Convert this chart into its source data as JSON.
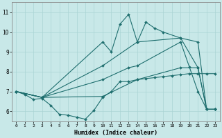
{
  "xlabel": "Humidex (Indice chaleur)",
  "xlim": [
    -0.5,
    23.5
  ],
  "ylim": [
    5.5,
    11.5
  ],
  "yticks": [
    6,
    7,
    8,
    9,
    10,
    11
  ],
  "xticks": [
    0,
    1,
    2,
    3,
    4,
    5,
    6,
    7,
    8,
    9,
    10,
    11,
    12,
    13,
    14,
    15,
    16,
    17,
    18,
    19,
    20,
    21,
    22,
    23
  ],
  "bg_color": "#c8e8e8",
  "line_color": "#1e6e6e",
  "grid_color": "#aad4d4",
  "lines": [
    {
      "x": [
        0,
        1,
        2,
        3,
        4,
        5,
        6,
        7,
        8,
        9,
        10,
        11,
        12,
        13,
        14,
        15,
        16,
        17,
        18,
        19,
        20,
        21,
        22,
        23
      ],
      "y": [
        7.0,
        6.85,
        6.6,
        6.65,
        6.3,
        5.85,
        5.8,
        5.7,
        5.6,
        6.05,
        6.7,
        7.0,
        7.5,
        7.5,
        7.6,
        7.65,
        7.7,
        7.75,
        7.8,
        7.85,
        7.9,
        7.9,
        7.9,
        7.9
      ]
    },
    {
      "x": [
        0,
        3,
        10,
        14,
        19,
        21,
        22,
        23
      ],
      "y": [
        7.0,
        6.7,
        6.75,
        7.6,
        8.2,
        8.2,
        6.1,
        6.1
      ]
    },
    {
      "x": [
        0,
        3,
        10,
        13,
        14,
        19,
        20,
        21,
        22,
        23
      ],
      "y": [
        7.0,
        6.7,
        7.6,
        8.2,
        8.3,
        9.5,
        8.25,
        7.0,
        6.1,
        6.1
      ]
    },
    {
      "x": [
        0,
        3,
        10,
        14,
        19,
        21,
        22,
        23
      ],
      "y": [
        7.0,
        6.7,
        8.3,
        9.5,
        9.7,
        9.5,
        6.1,
        6.1
      ]
    },
    {
      "x": [
        0,
        3,
        10,
        11,
        12,
        13,
        14,
        15,
        16,
        17,
        19,
        21,
        22,
        23
      ],
      "y": [
        7.0,
        6.7,
        9.5,
        9.0,
        10.4,
        10.9,
        9.5,
        10.5,
        10.2,
        10.0,
        9.7,
        8.2,
        6.1,
        6.1
      ]
    }
  ]
}
